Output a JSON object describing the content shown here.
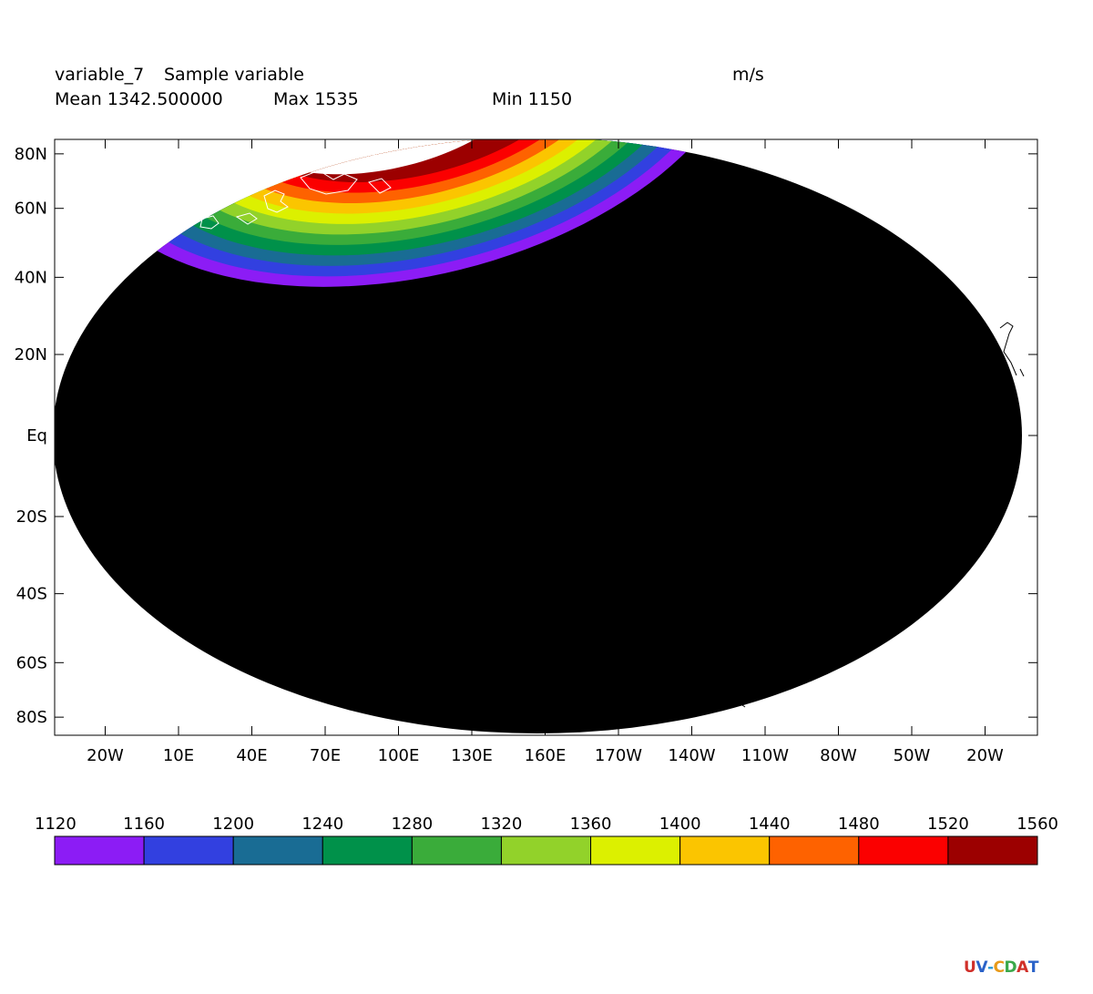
{
  "header": {
    "var_name": "variable_7",
    "var_long": "Sample variable",
    "units": "m/s",
    "mean": "Mean 1342.500000",
    "max": "Max 1535",
    "min": "Min 1150"
  },
  "chart_data": {
    "type": "heatmap",
    "projection": "mollweide",
    "x_tick_labels": [
      "20W",
      "10E",
      "40E",
      "70E",
      "100E",
      "130E",
      "160E",
      "170W",
      "140W",
      "110W",
      "80W",
      "50W",
      "20W"
    ],
    "y_tick_labels": [
      "80N",
      "60N",
      "40N",
      "20N",
      "Eq",
      "20S",
      "40S",
      "60S",
      "80S"
    ],
    "y_tick_values": [
      80,
      60,
      40,
      20,
      0,
      -20,
      -40,
      -60,
      -80
    ],
    "missing_color": "#000000",
    "colorbar": {
      "levels": [
        1120,
        1160,
        1200,
        1240,
        1280,
        1320,
        1360,
        1400,
        1440,
        1480,
        1520,
        1560
      ],
      "labels": [
        "1120",
        "1160",
        "1200",
        "1240",
        "1280",
        "1320",
        "1360",
        "1400",
        "1440",
        "1480",
        "1520",
        "1560"
      ],
      "colors": [
        "#8c1cf5",
        "#3240e0",
        "#196c94",
        "#00914a",
        "#3aac3a",
        "#92d22a",
        "#dcf000",
        "#fbc500",
        "#fe6200",
        "#fb0000",
        "#9c0000"
      ]
    },
    "stats": {
      "mean": 1342.5,
      "max": 1535,
      "min": 1150
    }
  },
  "logo": {
    "text": "UV-CDAT"
  }
}
